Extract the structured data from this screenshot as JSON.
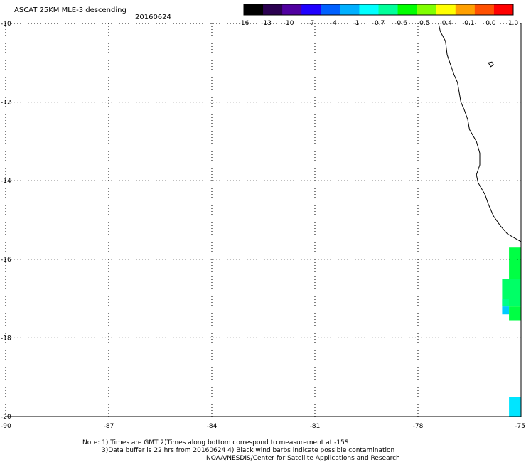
{
  "header": {
    "title": "ASCAT 25KM MLE-3 descending",
    "date": "20160624"
  },
  "colorbar": {
    "colors": [
      "#000000",
      "#2a0050",
      "#5000a0",
      "#2000ff",
      "#0060ff",
      "#00b0ff",
      "#00ffff",
      "#00ff9a",
      "#00ff00",
      "#80ff00",
      "#ffff00",
      "#ffa000",
      "#ff5000",
      "#ff0000"
    ],
    "labels": [
      "-16",
      "-13",
      "-10",
      "-7",
      "-4",
      "-1",
      "-0.7",
      "-0.6",
      "-0.5",
      "-0.4",
      "-0.1",
      "0.0",
      "1.0"
    ]
  },
  "map": {
    "lon_range": [
      -90,
      -75
    ],
    "lat_range": [
      -20,
      -10
    ],
    "lon_labels": [
      "-90",
      "-87",
      "-84",
      "-81",
      "-78",
      "-75"
    ],
    "lat_labels": [
      "-10",
      "-12",
      "-14",
      "-16",
      "-18",
      "-20"
    ],
    "grid_style": "dotted",
    "coastline_color": "#000000",
    "data_cells": [
      {
        "lon0": -75.35,
        "lon1": -75.0,
        "lat0": -16.5,
        "lat1": -15.7,
        "color": "#00ff44"
      },
      {
        "lon0": -75.55,
        "lon1": -75.0,
        "lat0": -16.5,
        "lat1": -17.2,
        "color": "#00ff66"
      },
      {
        "lon0": -75.55,
        "lon1": -75.35,
        "lat0": -17.0,
        "lat1": -17.2,
        "color": "#00ff88"
      },
      {
        "lon0": -75.55,
        "lon1": -75.35,
        "lat0": -17.2,
        "lat1": -17.4,
        "color": "#00ccff"
      },
      {
        "lon0": -75.35,
        "lon1": -75.0,
        "lat0": -17.2,
        "lat1": -17.55,
        "color": "#00ff44"
      },
      {
        "lon0": -75.35,
        "lon1": -75.0,
        "lat0": -19.5,
        "lat1": -20.0,
        "color": "#00e5ff"
      }
    ]
  },
  "notes": {
    "line1": "Note: 1) Times are GMT 2)Times along bottom correspond to measurement at -15S",
    "line2": "3)Data buffer is 22 hrs from 20160624 4) Black wind barbs indicate possible contamination",
    "line3": "NOAA/NESDIS/Center for Satellite Applications and Research"
  }
}
